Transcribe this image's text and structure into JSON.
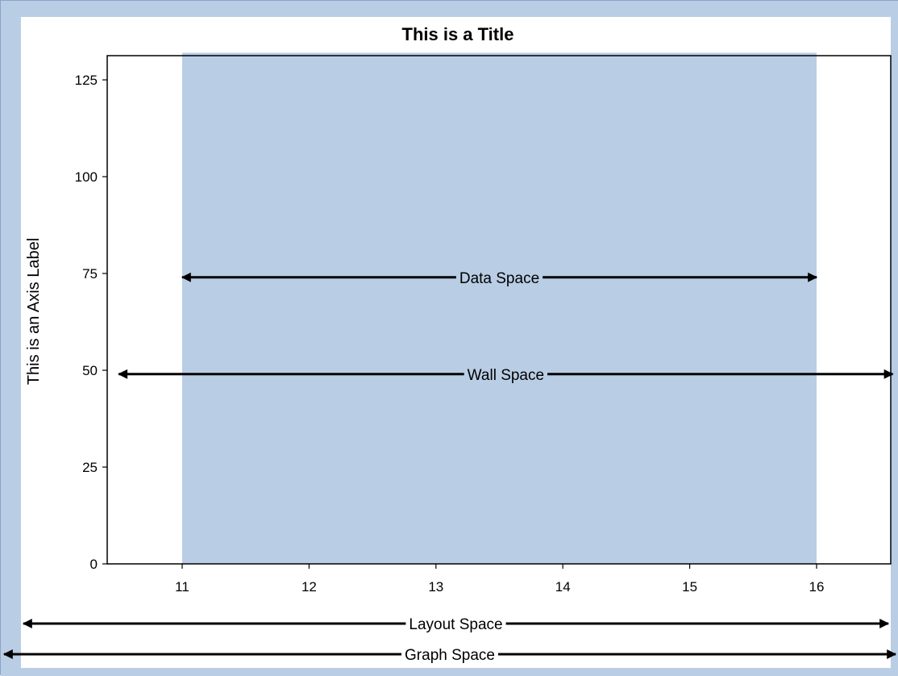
{
  "colors": {
    "graph_background": "#b9cde5",
    "wall": "#ffffff",
    "data_area": "#b9cde5",
    "axis": "#000000",
    "text": "#000000"
  },
  "chart_data": {
    "type": "area",
    "title": "This is a Title",
    "xlabel": "",
    "ylabel": "This is an Axis Label",
    "xlim": [
      10.5,
      16.6
    ],
    "ylim": [
      0,
      132
    ],
    "x_ticks": [
      "11",
      "12",
      "13",
      "14",
      "15",
      "16"
    ],
    "y_ticks": [
      "0",
      "25",
      "50",
      "75",
      "100",
      "125"
    ],
    "grid": false,
    "legend": "none",
    "data_region": {
      "x": [
        11,
        16
      ],
      "y": [
        0,
        132
      ]
    },
    "annotations": [
      {
        "label": "Data Space",
        "from_x": 11,
        "to_x": 16,
        "at_y": 74
      },
      {
        "label": "Wall Space",
        "from_x": 10.5,
        "to_x": 16.6,
        "at_y": 49
      },
      {
        "label": "Layout Space",
        "extent": "layout",
        "position": "below-axis"
      },
      {
        "label": "Graph Space",
        "extent": "graph",
        "position": "bottom"
      }
    ]
  }
}
